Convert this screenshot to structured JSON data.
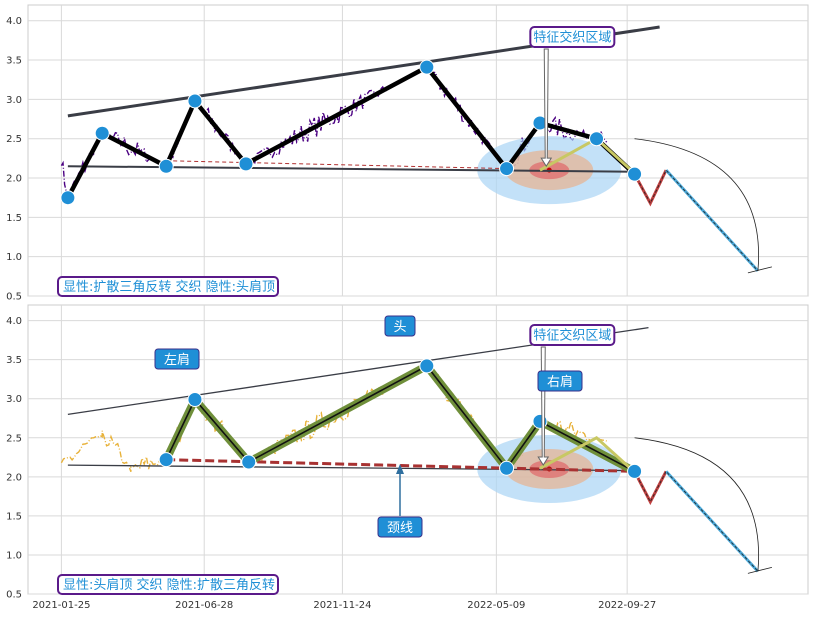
{
  "chart_data": [
    {
      "type": "line",
      "panel": "top",
      "ylim": [
        0.5,
        4.2
      ],
      "yticks": [
        "0.5",
        "1.0",
        "1.5",
        "2.0",
        "2.5",
        "3.0",
        "3.5",
        "4.0"
      ],
      "grid": true,
      "caption": "显性:扩散三角反转 交织 隐性:头肩顶",
      "feature_label": "特征交织区域",
      "price_color": "#4b0082",
      "pattern_points": [
        {
          "x": "2021-02-01",
          "y": 1.75
        },
        {
          "x": "2021-03-10",
          "y": 2.57
        },
        {
          "x": "2021-05-18",
          "y": 2.15
        },
        {
          "x": "2021-06-18",
          "y": 2.98
        },
        {
          "x": "2021-08-12",
          "y": 2.18
        },
        {
          "x": "2022-02-23",
          "y": 3.41
        },
        {
          "x": "2022-05-20",
          "y": 2.12
        },
        {
          "x": "2022-06-25",
          "y": 2.7
        },
        {
          "x": "2022-08-25",
          "y": 2.5
        },
        {
          "x": "2022-10-05",
          "y": 2.05
        }
      ],
      "upper_trendline": [
        {
          "x": "2021-02-01",
          "y": 2.79
        },
        {
          "x": "2022-11-01",
          "y": 3.92
        }
      ],
      "lower_trendline": [
        {
          "x": "2021-02-01",
          "y": 2.15
        },
        {
          "x": "2022-10-05",
          "y": 2.08
        }
      ],
      "projection": [
        {
          "x": "2022-10-05",
          "y": 2.05
        },
        {
          "x": "2022-10-22",
          "y": 1.68
        },
        {
          "x": "2022-11-08",
          "y": 2.1
        },
        {
          "x": "2023-02-15",
          "y": 0.82
        }
      ]
    },
    {
      "type": "line",
      "panel": "bottom",
      "ylim": [
        0.5,
        4.2
      ],
      "yticks": [
        "0.5",
        "1.0",
        "1.5",
        "2.0",
        "2.5",
        "3.0",
        "3.5",
        "4.0"
      ],
      "xticks": [
        "2021-01-25",
        "2021-06-28",
        "2021-11-24",
        "2022-05-09",
        "2022-09-27"
      ],
      "grid": true,
      "caption": "显性:头肩顶 交织 隐性:扩散三角反转",
      "feature_label": "特征交织区域",
      "labels": {
        "left_shoulder": "左肩",
        "head": "头",
        "right_shoulder": "右肩",
        "neckline": "颈线"
      },
      "price_color": "#e8b23a",
      "pattern_points": [
        {
          "x": "2021-05-18",
          "y": 2.22
        },
        {
          "x": "2021-06-18",
          "y": 2.99
        },
        {
          "x": "2021-08-15",
          "y": 2.19
        },
        {
          "x": "2022-02-23",
          "y": 3.42
        },
        {
          "x": "2022-05-20",
          "y": 2.11
        },
        {
          "x": "2022-06-25",
          "y": 2.71
        },
        {
          "x": "2022-10-05",
          "y": 2.07
        }
      ],
      "upper_trendline": [
        {
          "x": "2021-02-01",
          "y": 2.8
        },
        {
          "x": "2022-10-20",
          "y": 3.91
        }
      ],
      "lower_trendline": [
        {
          "x": "2021-02-01",
          "y": 2.15
        },
        {
          "x": "2022-10-05",
          "y": 2.08
        }
      ],
      "neckline": [
        {
          "x": "2021-05-18",
          "y": 2.22
        },
        {
          "x": "2022-10-05",
          "y": 2.07
        }
      ],
      "projection": [
        {
          "x": "2022-10-05",
          "y": 2.07
        },
        {
          "x": "2022-10-22",
          "y": 1.68
        },
        {
          "x": "2022-11-08",
          "y": 2.07
        },
        {
          "x": "2023-02-15",
          "y": 0.79
        }
      ]
    }
  ]
}
